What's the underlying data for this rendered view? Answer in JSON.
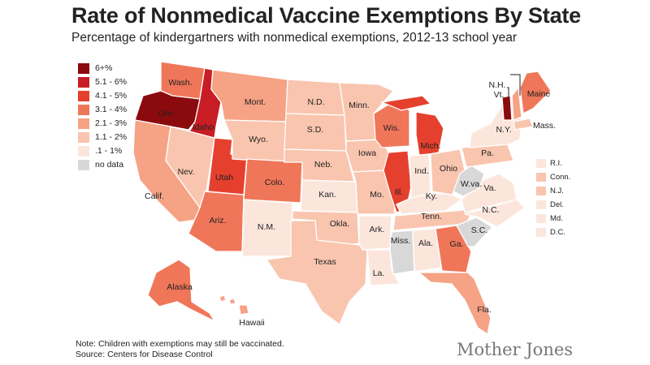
{
  "title": "Rate of Nonmedical Vaccine Exemptions By State",
  "subtitle": "Percentage of kindergartners with nonmedical exemptions, 2012-13 school year",
  "legend": [
    {
      "label": "6+%",
      "color": "#8b0a0e"
    },
    {
      "label": "5.1 - 6%",
      "color": "#c81d24"
    },
    {
      "label": "4.1 - 5%",
      "color": "#e5402e"
    },
    {
      "label": "3.1 - 4%",
      "color": "#f07659"
    },
    {
      "label": "2.1 - 3%",
      "color": "#f6a285"
    },
    {
      "label": "1.1 - 2%",
      "color": "#f9c5ae"
    },
    {
      ".1 - 1%": null,
      "label": ".1 - 1%",
      "color": "#fce6dc"
    },
    {
      "label": "no data",
      "color": "#d8d8d8"
    }
  ],
  "states": [
    {
      "id": "wa",
      "label": "Wash.",
      "color": "#f07659"
    },
    {
      "id": "or",
      "label": "Ore.",
      "color": "#8b0a0e"
    },
    {
      "id": "ca",
      "label": "Calif.",
      "color": "#f6a285"
    },
    {
      "id": "id",
      "label": "Idaho",
      "color": "#c81d24"
    },
    {
      "id": "nv",
      "label": "Nev.",
      "color": "#f9c5ae"
    },
    {
      "id": "ut",
      "label": "Utah",
      "color": "#e5402e"
    },
    {
      "id": "az",
      "label": "Ariz.",
      "color": "#f07659"
    },
    {
      "id": "mt",
      "label": "Mont.",
      "color": "#f6a285"
    },
    {
      "id": "wy",
      "label": "Wyo.",
      "color": "#f9c5ae"
    },
    {
      "id": "co",
      "label": "Colo.",
      "color": "#f07659"
    },
    {
      "id": "nm",
      "label": "N.M.",
      "color": "#fce6dc"
    },
    {
      "id": "nd",
      "label": "N.D.",
      "color": "#f9c5ae"
    },
    {
      "id": "sd",
      "label": "S.D.",
      "color": "#f9c5ae"
    },
    {
      "id": "ne",
      "label": "Neb.",
      "color": "#f9c5ae"
    },
    {
      "id": "ks",
      "label": "Kan.",
      "color": "#fce6dc"
    },
    {
      "id": "ok",
      "label": "Okla.",
      "color": "#f9c5ae"
    },
    {
      "id": "tx",
      "label": "Texas",
      "color": "#f9c5ae"
    },
    {
      "id": "mn",
      "label": "Minn.",
      "color": "#f9c5ae"
    },
    {
      "id": "ia",
      "label": "Iowa",
      "color": "#f9c5ae"
    },
    {
      "id": "mo",
      "label": "Mo.",
      "color": "#f9c5ae"
    },
    {
      "id": "ar",
      "label": "Ark.",
      "color": "#fce6dc"
    },
    {
      "id": "la",
      "label": "La.",
      "color": "#fce6dc"
    },
    {
      "id": "wi",
      "label": "Wis.",
      "color": "#f07659"
    },
    {
      "id": "il",
      "label": "Ill.",
      "color": "#e5402e"
    },
    {
      "id": "mi",
      "label": "Mich.",
      "color": "#e5402e"
    },
    {
      "id": "in",
      "label": "Ind.",
      "color": "#fce6dc"
    },
    {
      "id": "oh",
      "label": "Ohio",
      "color": "#f9c5ae"
    },
    {
      "id": "ky",
      "label": "Ky.",
      "color": "#fce6dc"
    },
    {
      "id": "tn",
      "label": "Tenn.",
      "color": "#f9c5ae"
    },
    {
      "id": "ms",
      "label": "Miss.",
      "color": "#d8d8d8"
    },
    {
      "id": "al",
      "label": "Ala.",
      "color": "#fce6dc"
    },
    {
      "id": "ga",
      "label": "Ga.",
      "color": "#f07659"
    },
    {
      "id": "fl",
      "label": "Fla.",
      "color": "#f6a285"
    },
    {
      "id": "sc",
      "label": "S.C.",
      "color": "#d8d8d8"
    },
    {
      "id": "nc",
      "label": "N.C.",
      "color": "#fce6dc"
    },
    {
      "id": "va",
      "label": "Va.",
      "color": "#fce6dc"
    },
    {
      "id": "wv",
      "label": "W.va.",
      "color": "#d8d8d8"
    },
    {
      "id": "pa",
      "label": "Pa.",
      "color": "#f9c5ae"
    },
    {
      "id": "ny",
      "label": "N.Y.",
      "color": "#fce6dc"
    },
    {
      "id": "vt",
      "label": "Vt.",
      "color": "#8b0a0e"
    },
    {
      "id": "nh",
      "label": "N.H.",
      "color": "#f6a285"
    },
    {
      "id": "me",
      "label": "Maine",
      "color": "#f07659"
    },
    {
      "id": "ma",
      "label": "Mass.",
      "color": "#f9c5ae"
    },
    {
      "id": "ak",
      "label": "Alaska",
      "color": "#f07659"
    },
    {
      "id": "hi",
      "label": "Hawaii",
      "color": "#f6a285"
    }
  ],
  "small_states": [
    {
      "label": "R.I.",
      "color": "#fce6dc"
    },
    {
      "label": "Conn.",
      "color": "#f9c5ae"
    },
    {
      "label": "N.J.",
      "color": "#f9c5ae"
    },
    {
      "label": "Del.",
      "color": "#fce6dc"
    },
    {
      "label": "Md.",
      "color": "#fce6dc"
    },
    {
      "label": "D.C.",
      "color": "#fce6dc"
    }
  ],
  "note": "Note: Children with exemptions may still be vaccinated.",
  "source": "Source: Centers for Disease Control",
  "brand": "Mother Jones"
}
